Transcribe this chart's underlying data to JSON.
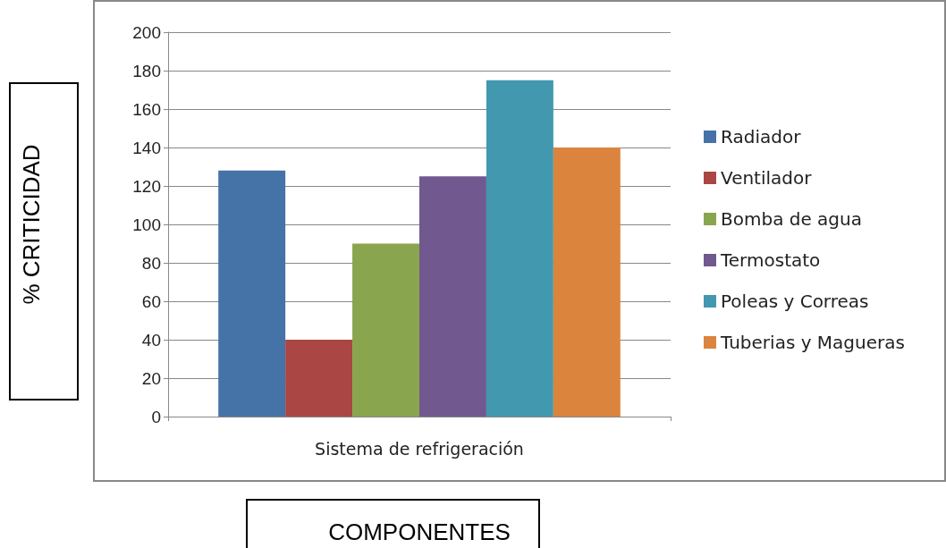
{
  "chart_data": {
    "type": "bar",
    "xlabel": "COMPONENTES",
    "ylabel": "% CRITICIDAD",
    "categories": [
      "Sistema de refrigeración"
    ],
    "series": [
      {
        "name": "Radiador",
        "color": "#4572a7",
        "values": [
          128
        ]
      },
      {
        "name": "Ventilador",
        "color": "#aa4643",
        "values": [
          40
        ]
      },
      {
        "name": "Bomba de agua",
        "color": "#89a54e",
        "values": [
          90
        ]
      },
      {
        "name": "Termostato",
        "color": "#71588f",
        "values": [
          125
        ]
      },
      {
        "name": "Poleas y Correas",
        "color": "#4198af",
        "values": [
          175
        ]
      },
      {
        "name": "Tuberias y Magueras",
        "color": "#db843d",
        "values": [
          140
        ]
      }
    ],
    "ylim": [
      0,
      200
    ],
    "yticks": [
      0,
      20,
      40,
      60,
      80,
      100,
      120,
      140,
      160,
      180,
      200
    ],
    "grid": "y",
    "legend": "right"
  }
}
